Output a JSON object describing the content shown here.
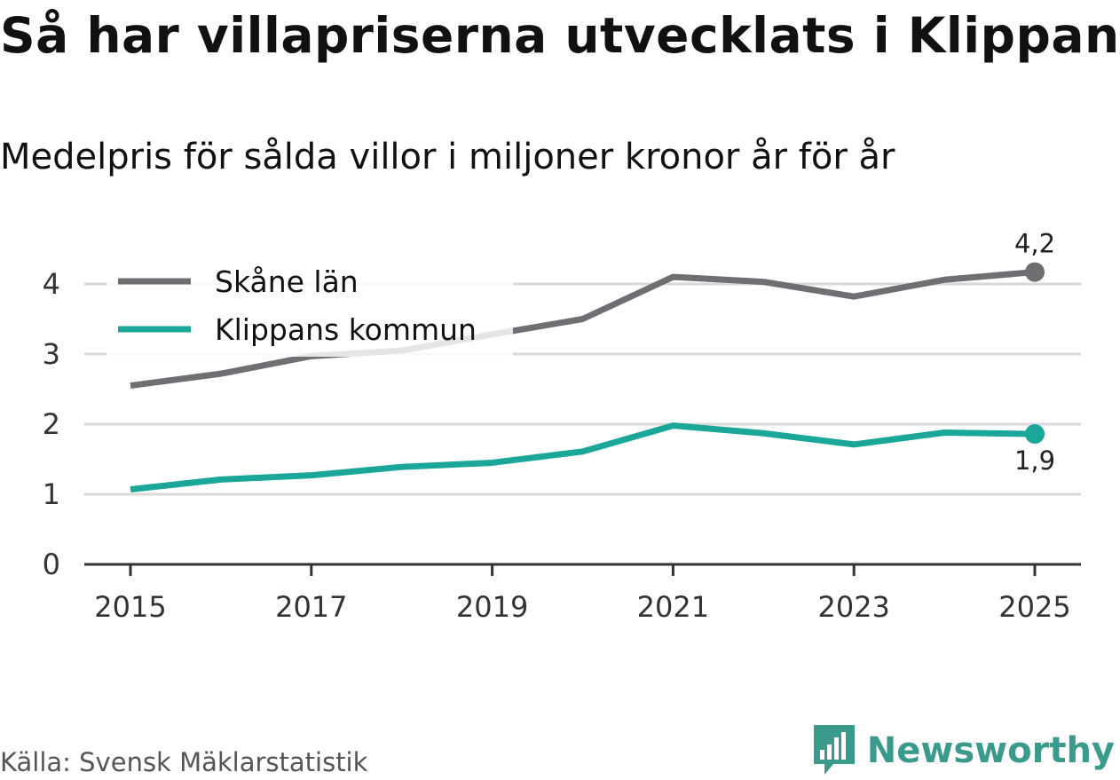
{
  "header": {
    "title": "Så har villapriserna utvecklats i Klippan",
    "subtitle": "Medelpris för sålda villor i miljoner kronor år för år"
  },
  "footer": {
    "source": "Källa: Svensk Mäklarstatistik",
    "brand": "Newsworthy",
    "brand_icon": "bar-chart-speech-bubble-icon"
  },
  "colors": {
    "skane": "#6e6e73",
    "klippan": "#1aa79a",
    "grid": "#d9d9d9",
    "axis": "#333333"
  },
  "chart_data": {
    "type": "line",
    "x": [
      2015,
      2016,
      2017,
      2018,
      2019,
      2020,
      2021,
      2022,
      2023,
      2024,
      2025
    ],
    "x_ticks": [
      "2015",
      "2017",
      "2019",
      "2021",
      "2023",
      "2025"
    ],
    "y_ticks": [
      "0",
      "1",
      "2",
      "3",
      "4"
    ],
    "ylim": [
      0,
      4.5
    ],
    "xlim": [
      2014.5,
      2025.5
    ],
    "grid": true,
    "legend_position": "top-left",
    "series": [
      {
        "name": "Skåne län",
        "values": [
          2.55,
          2.72,
          2.97,
          3.05,
          3.28,
          3.5,
          4.1,
          4.03,
          3.82,
          4.06,
          4.17
        ],
        "end_label": "4,2"
      },
      {
        "name": "Klippans kommun",
        "values": [
          1.07,
          1.21,
          1.27,
          1.39,
          1.45,
          1.61,
          1.98,
          1.87,
          1.71,
          1.88,
          1.86
        ],
        "end_label": "1,9"
      }
    ]
  }
}
